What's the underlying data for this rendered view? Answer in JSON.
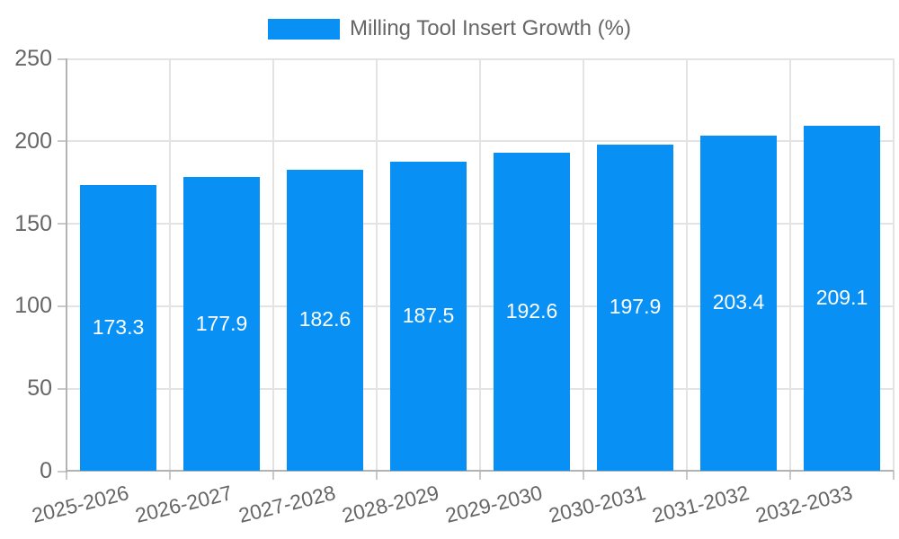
{
  "legend": {
    "label": "Milling Tool Insert Growth (%)"
  },
  "chart_data": {
    "type": "bar",
    "title": "",
    "xlabel": "",
    "ylabel": "",
    "categories": [
      "2025-2026",
      "2026-2027",
      "2027-2028",
      "2028-2029",
      "2029-2030",
      "2030-2031",
      "2031-2032",
      "2032-2033"
    ],
    "series": [
      {
        "name": "Milling Tool Insert Growth (%)",
        "values": [
          173.3,
          177.9,
          182.6,
          187.5,
          192.6,
          197.9,
          203.4,
          209.1
        ]
      }
    ],
    "value_labels": [
      "173.3",
      "177.9",
      "182.6",
      "187.5",
      "192.6",
      "197.9",
      "203.4",
      "209.1"
    ],
    "ylim": [
      0,
      250
    ],
    "yticks": [
      0,
      50,
      100,
      150,
      200,
      250
    ],
    "grid": true,
    "legend_position": "top",
    "colors": {
      "bar": "#0990f5",
      "grid": "#e3e3e3",
      "axis": "#b3b3b3",
      "tick": "#c9c9c9",
      "tick_label": "#666666",
      "legend_text": "#666666",
      "value_label": "#ffffff",
      "background": "#ffffff"
    }
  }
}
